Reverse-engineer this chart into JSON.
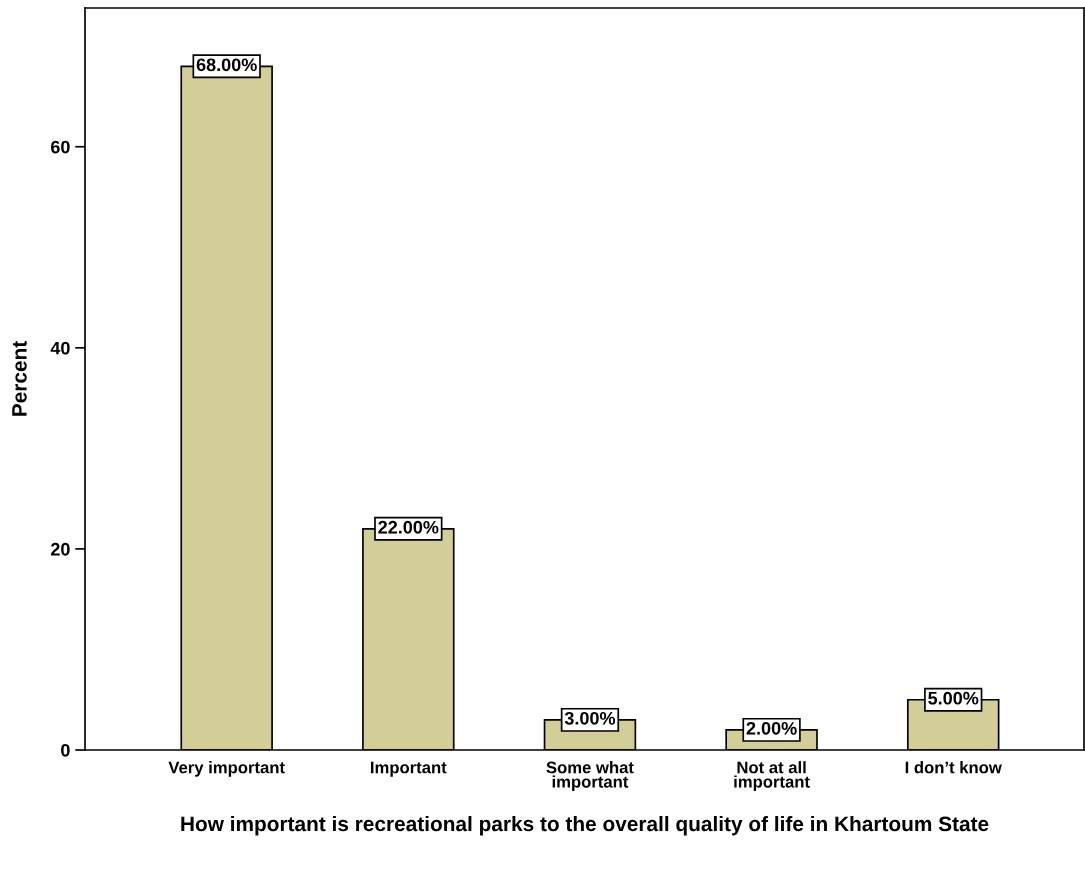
{
  "chart_data": {
    "type": "bar",
    "xlabel": "How important is recreational parks to the overall quality of life in Khartoum State",
    "ylabel": "Percent",
    "categories": [
      "Very important",
      "Important",
      "Some what\nimportant",
      "Not at all\nimportant",
      "I don’t know"
    ],
    "values": [
      68,
      22,
      3,
      2,
      5
    ],
    "value_labels": [
      "68.00%",
      "22.00%",
      "3.00%",
      "2.00%",
      "5.00%"
    ],
    "color": "#d3ce97",
    "ylim": [
      0,
      73.8
    ],
    "yticks": [
      0,
      20,
      40,
      60
    ],
    "grid": false,
    "legend": false
  }
}
